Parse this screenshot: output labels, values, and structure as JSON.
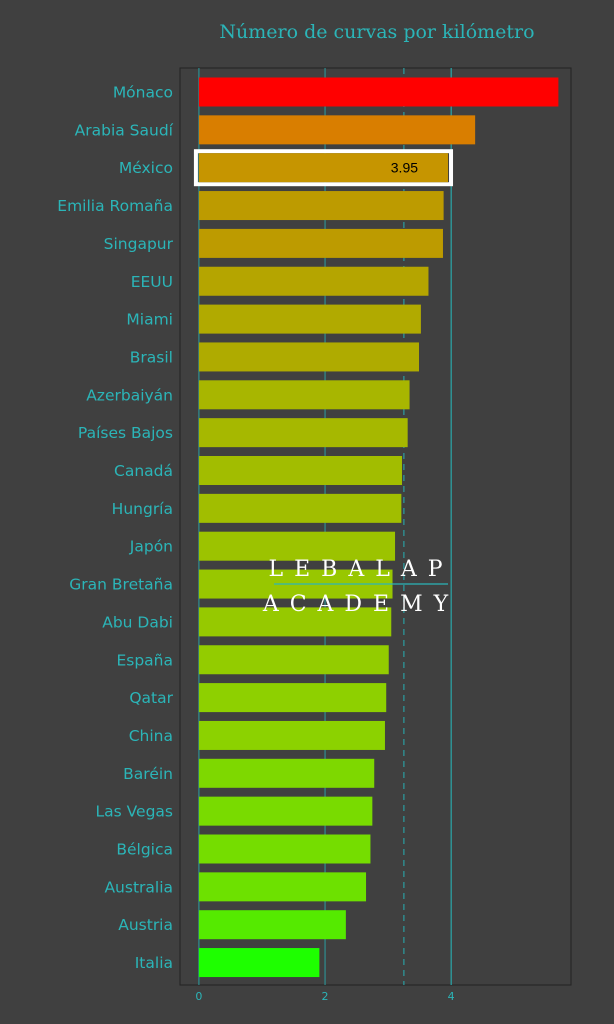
{
  "chart_data": {
    "type": "bar",
    "orientation": "horizontal",
    "title": "Número de curvas por kilómetro",
    "xlabel": "",
    "ylabel": "",
    "xlim": [
      -0.3,
      5.9
    ],
    "xticks": [
      0,
      2,
      4
    ],
    "categories": [
      "Mónaco",
      "Arabia Saudí",
      "México",
      "Emilia Romaña",
      "Singapur",
      "EEUU",
      "Miami",
      "Brasil",
      "Azerbaiyán",
      "Países Bajos",
      "Canadá",
      "Hungría",
      "Japón",
      "Gran Bretaña",
      "Abu Dabi",
      "España",
      "Qatar",
      "China",
      "Baréin",
      "Las Vegas",
      "Bélgica",
      "Australia",
      "Austria",
      "Italia"
    ],
    "values": [
      5.7,
      4.38,
      3.95,
      3.88,
      3.87,
      3.64,
      3.52,
      3.49,
      3.34,
      3.31,
      3.22,
      3.21,
      3.11,
      3.07,
      3.05,
      3.01,
      2.97,
      2.95,
      2.78,
      2.75,
      2.72,
      2.65,
      2.33,
      1.91
    ],
    "colors": [
      "#ff0000",
      "#d97e00",
      "#c69500",
      "#bd9b00",
      "#bd9b00",
      "#b5a500",
      "#b1aa00",
      "#afab00",
      "#a8b600",
      "#a6b800",
      "#a2bd00",
      "#a1be00",
      "#9cc300",
      "#98c700",
      "#96c900",
      "#93cc00",
      "#8ed000",
      "#8cd200",
      "#7ed800",
      "#79db00",
      "#75dd00",
      "#6de100",
      "#55ea00",
      "#1eff00"
    ],
    "highlight": {
      "category": "México",
      "label": "3.95"
    },
    "reference_lines": [
      {
        "value": 3.25,
        "style": "dashed"
      },
      {
        "value": 4.0,
        "style": "solid"
      }
    ],
    "grid": true,
    "legend": "none"
  },
  "watermark": {
    "line1": "LEBALAP",
    "line2": "ACADEMY"
  },
  "colors": {
    "background": "#404040",
    "text": "#2bb5b8",
    "grid": "#2b9da0",
    "highlight_border": "#ffffff"
  }
}
